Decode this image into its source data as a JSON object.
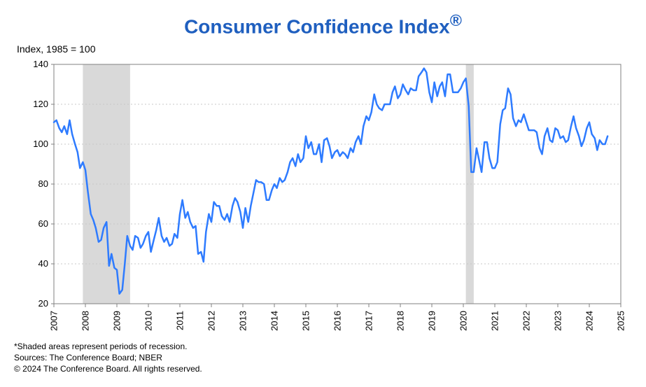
{
  "title": "Consumer Confidence Index",
  "title_sup": "®",
  "title_color": "#1f5fbf",
  "subtitle": "Index, 1985 = 100",
  "footnote1": "*Shaded areas represent periods of recession.",
  "footnote2": "Sources: The Conference Board;  NBER",
  "footnote3": "© 2024 The Conference Board. All rights reserved.",
  "chart": {
    "type": "line",
    "background_color": "#ffffff",
    "border_color": "#808080",
    "grid_color": "#c8c8c8",
    "line_color": "#2e7bff",
    "line_width": 2.5,
    "recession_fill": "#d9d9d9",
    "y": {
      "min": 20,
      "max": 140,
      "ticks": [
        20,
        40,
        60,
        80,
        100,
        120,
        140
      ],
      "tick_fontsize": 13
    },
    "x": {
      "min": 2007,
      "max": 2025,
      "ticks": [
        2007,
        2008,
        2009,
        2010,
        2011,
        2012,
        2013,
        2014,
        2015,
        2016,
        2017,
        2018,
        2019,
        2020,
        2021,
        2022,
        2023,
        2024,
        2025
      ],
      "tick_fontsize": 13,
      "rotate": -90
    },
    "recessions": [
      {
        "start": 2007.92,
        "end": 2009.42
      },
      {
        "start": 2020.08,
        "end": 2020.33
      }
    ],
    "series": [
      {
        "x": 2007.0,
        "y": 111
      },
      {
        "x": 2007.08,
        "y": 112
      },
      {
        "x": 2007.17,
        "y": 108
      },
      {
        "x": 2007.25,
        "y": 106
      },
      {
        "x": 2007.33,
        "y": 109
      },
      {
        "x": 2007.42,
        "y": 105
      },
      {
        "x": 2007.5,
        "y": 112
      },
      {
        "x": 2007.58,
        "y": 105
      },
      {
        "x": 2007.67,
        "y": 100
      },
      {
        "x": 2007.75,
        "y": 96
      },
      {
        "x": 2007.83,
        "y": 88
      },
      {
        "x": 2007.92,
        "y": 91
      },
      {
        "x": 2008.0,
        "y": 87
      },
      {
        "x": 2008.08,
        "y": 76
      },
      {
        "x": 2008.17,
        "y": 65
      },
      {
        "x": 2008.25,
        "y": 62
      },
      {
        "x": 2008.33,
        "y": 58
      },
      {
        "x": 2008.42,
        "y": 51
      },
      {
        "x": 2008.5,
        "y": 52
      },
      {
        "x": 2008.58,
        "y": 58
      },
      {
        "x": 2008.67,
        "y": 61
      },
      {
        "x": 2008.75,
        "y": 39
      },
      {
        "x": 2008.83,
        "y": 45
      },
      {
        "x": 2008.92,
        "y": 38
      },
      {
        "x": 2009.0,
        "y": 37
      },
      {
        "x": 2009.08,
        "y": 25
      },
      {
        "x": 2009.17,
        "y": 27
      },
      {
        "x": 2009.25,
        "y": 40
      },
      {
        "x": 2009.33,
        "y": 54
      },
      {
        "x": 2009.42,
        "y": 49
      },
      {
        "x": 2009.5,
        "y": 47
      },
      {
        "x": 2009.58,
        "y": 54
      },
      {
        "x": 2009.67,
        "y": 53
      },
      {
        "x": 2009.75,
        "y": 48
      },
      {
        "x": 2009.83,
        "y": 50
      },
      {
        "x": 2009.92,
        "y": 54
      },
      {
        "x": 2010.0,
        "y": 56
      },
      {
        "x": 2010.08,
        "y": 46
      },
      {
        "x": 2010.17,
        "y": 52
      },
      {
        "x": 2010.25,
        "y": 57
      },
      {
        "x": 2010.33,
        "y": 63
      },
      {
        "x": 2010.42,
        "y": 54
      },
      {
        "x": 2010.5,
        "y": 51
      },
      {
        "x": 2010.58,
        "y": 53
      },
      {
        "x": 2010.67,
        "y": 49
      },
      {
        "x": 2010.75,
        "y": 50
      },
      {
        "x": 2010.83,
        "y": 55
      },
      {
        "x": 2010.92,
        "y": 53
      },
      {
        "x": 2011.0,
        "y": 65
      },
      {
        "x": 2011.08,
        "y": 72
      },
      {
        "x": 2011.17,
        "y": 63
      },
      {
        "x": 2011.25,
        "y": 66
      },
      {
        "x": 2011.33,
        "y": 61
      },
      {
        "x": 2011.42,
        "y": 58
      },
      {
        "x": 2011.5,
        "y": 59
      },
      {
        "x": 2011.58,
        "y": 45
      },
      {
        "x": 2011.67,
        "y": 46
      },
      {
        "x": 2011.75,
        "y": 41
      },
      {
        "x": 2011.83,
        "y": 56
      },
      {
        "x": 2011.92,
        "y": 65
      },
      {
        "x": 2012.0,
        "y": 61
      },
      {
        "x": 2012.08,
        "y": 71
      },
      {
        "x": 2012.17,
        "y": 69
      },
      {
        "x": 2012.25,
        "y": 69
      },
      {
        "x": 2012.33,
        "y": 64
      },
      {
        "x": 2012.42,
        "y": 62
      },
      {
        "x": 2012.5,
        "y": 65
      },
      {
        "x": 2012.58,
        "y": 61
      },
      {
        "x": 2012.67,
        "y": 69
      },
      {
        "x": 2012.75,
        "y": 73
      },
      {
        "x": 2012.83,
        "y": 71
      },
      {
        "x": 2012.92,
        "y": 66
      },
      {
        "x": 2013.0,
        "y": 58
      },
      {
        "x": 2013.08,
        "y": 68
      },
      {
        "x": 2013.17,
        "y": 61
      },
      {
        "x": 2013.25,
        "y": 69
      },
      {
        "x": 2013.33,
        "y": 75
      },
      {
        "x": 2013.42,
        "y": 82
      },
      {
        "x": 2013.5,
        "y": 81
      },
      {
        "x": 2013.58,
        "y": 81
      },
      {
        "x": 2013.67,
        "y": 80
      },
      {
        "x": 2013.75,
        "y": 72
      },
      {
        "x": 2013.83,
        "y": 72
      },
      {
        "x": 2013.92,
        "y": 77
      },
      {
        "x": 2014.0,
        "y": 80
      },
      {
        "x": 2014.08,
        "y": 78
      },
      {
        "x": 2014.17,
        "y": 83
      },
      {
        "x": 2014.25,
        "y": 81
      },
      {
        "x": 2014.33,
        "y": 82
      },
      {
        "x": 2014.42,
        "y": 86
      },
      {
        "x": 2014.5,
        "y": 91
      },
      {
        "x": 2014.58,
        "y": 93
      },
      {
        "x": 2014.67,
        "y": 89
      },
      {
        "x": 2014.75,
        "y": 95
      },
      {
        "x": 2014.83,
        "y": 91
      },
      {
        "x": 2014.92,
        "y": 93
      },
      {
        "x": 2015.0,
        "y": 104
      },
      {
        "x": 2015.08,
        "y": 98
      },
      {
        "x": 2015.17,
        "y": 101
      },
      {
        "x": 2015.25,
        "y": 95
      },
      {
        "x": 2015.33,
        "y": 95
      },
      {
        "x": 2015.42,
        "y": 100
      },
      {
        "x": 2015.5,
        "y": 91
      },
      {
        "x": 2015.58,
        "y": 102
      },
      {
        "x": 2015.67,
        "y": 103
      },
      {
        "x": 2015.75,
        "y": 99
      },
      {
        "x": 2015.83,
        "y": 93
      },
      {
        "x": 2015.92,
        "y": 96
      },
      {
        "x": 2016.0,
        "y": 97
      },
      {
        "x": 2016.08,
        "y": 94
      },
      {
        "x": 2016.17,
        "y": 96
      },
      {
        "x": 2016.25,
        "y": 95
      },
      {
        "x": 2016.33,
        "y": 93
      },
      {
        "x": 2016.42,
        "y": 98
      },
      {
        "x": 2016.5,
        "y": 96
      },
      {
        "x": 2016.58,
        "y": 101
      },
      {
        "x": 2016.67,
        "y": 104
      },
      {
        "x": 2016.75,
        "y": 100
      },
      {
        "x": 2016.83,
        "y": 109
      },
      {
        "x": 2016.92,
        "y": 114
      },
      {
        "x": 2017.0,
        "y": 112
      },
      {
        "x": 2017.08,
        "y": 116
      },
      {
        "x": 2017.17,
        "y": 125
      },
      {
        "x": 2017.25,
        "y": 120
      },
      {
        "x": 2017.33,
        "y": 118
      },
      {
        "x": 2017.42,
        "y": 117
      },
      {
        "x": 2017.5,
        "y": 120
      },
      {
        "x": 2017.58,
        "y": 120
      },
      {
        "x": 2017.67,
        "y": 120
      },
      {
        "x": 2017.75,
        "y": 126
      },
      {
        "x": 2017.83,
        "y": 129
      },
      {
        "x": 2017.92,
        "y": 123
      },
      {
        "x": 2018.0,
        "y": 125
      },
      {
        "x": 2018.08,
        "y": 130
      },
      {
        "x": 2018.17,
        "y": 127
      },
      {
        "x": 2018.25,
        "y": 125
      },
      {
        "x": 2018.33,
        "y": 128
      },
      {
        "x": 2018.42,
        "y": 127
      },
      {
        "x": 2018.5,
        "y": 127
      },
      {
        "x": 2018.58,
        "y": 134
      },
      {
        "x": 2018.67,
        "y": 136
      },
      {
        "x": 2018.75,
        "y": 138
      },
      {
        "x": 2018.83,
        "y": 136
      },
      {
        "x": 2018.92,
        "y": 126
      },
      {
        "x": 2019.0,
        "y": 121
      },
      {
        "x": 2019.08,
        "y": 131
      },
      {
        "x": 2019.17,
        "y": 124
      },
      {
        "x": 2019.25,
        "y": 129
      },
      {
        "x": 2019.33,
        "y": 131
      },
      {
        "x": 2019.42,
        "y": 124
      },
      {
        "x": 2019.5,
        "y": 135
      },
      {
        "x": 2019.58,
        "y": 135
      },
      {
        "x": 2019.67,
        "y": 126
      },
      {
        "x": 2019.75,
        "y": 126
      },
      {
        "x": 2019.83,
        "y": 126
      },
      {
        "x": 2019.92,
        "y": 128
      },
      {
        "x": 2020.0,
        "y": 131
      },
      {
        "x": 2020.08,
        "y": 133
      },
      {
        "x": 2020.17,
        "y": 119
      },
      {
        "x": 2020.25,
        "y": 86
      },
      {
        "x": 2020.33,
        "y": 86
      },
      {
        "x": 2020.42,
        "y": 98
      },
      {
        "x": 2020.5,
        "y": 92
      },
      {
        "x": 2020.58,
        "y": 86
      },
      {
        "x": 2020.67,
        "y": 101
      },
      {
        "x": 2020.75,
        "y": 101
      },
      {
        "x": 2020.83,
        "y": 93
      },
      {
        "x": 2020.92,
        "y": 88
      },
      {
        "x": 2021.0,
        "y": 88
      },
      {
        "x": 2021.08,
        "y": 91
      },
      {
        "x": 2021.17,
        "y": 110
      },
      {
        "x": 2021.25,
        "y": 117
      },
      {
        "x": 2021.33,
        "y": 118
      },
      {
        "x": 2021.42,
        "y": 128
      },
      {
        "x": 2021.5,
        "y": 125
      },
      {
        "x": 2021.58,
        "y": 113
      },
      {
        "x": 2021.67,
        "y": 109
      },
      {
        "x": 2021.75,
        "y": 112
      },
      {
        "x": 2021.83,
        "y": 111
      },
      {
        "x": 2021.92,
        "y": 115
      },
      {
        "x": 2022.0,
        "y": 111
      },
      {
        "x": 2022.08,
        "y": 107
      },
      {
        "x": 2022.17,
        "y": 107
      },
      {
        "x": 2022.25,
        "y": 107
      },
      {
        "x": 2022.33,
        "y": 106
      },
      {
        "x": 2022.42,
        "y": 98
      },
      {
        "x": 2022.5,
        "y": 95
      },
      {
        "x": 2022.58,
        "y": 104
      },
      {
        "x": 2022.67,
        "y": 108
      },
      {
        "x": 2022.75,
        "y": 102
      },
      {
        "x": 2022.83,
        "y": 101
      },
      {
        "x": 2022.92,
        "y": 108
      },
      {
        "x": 2023.0,
        "y": 107
      },
      {
        "x": 2023.08,
        "y": 103
      },
      {
        "x": 2023.17,
        "y": 104
      },
      {
        "x": 2023.25,
        "y": 101
      },
      {
        "x": 2023.33,
        "y": 102
      },
      {
        "x": 2023.42,
        "y": 109
      },
      {
        "x": 2023.5,
        "y": 114
      },
      {
        "x": 2023.58,
        "y": 108
      },
      {
        "x": 2023.67,
        "y": 104
      },
      {
        "x": 2023.75,
        "y": 99
      },
      {
        "x": 2023.83,
        "y": 102
      },
      {
        "x": 2023.92,
        "y": 108
      },
      {
        "x": 2024.0,
        "y": 111
      },
      {
        "x": 2024.08,
        "y": 105
      },
      {
        "x": 2024.17,
        "y": 103
      },
      {
        "x": 2024.25,
        "y": 97
      },
      {
        "x": 2024.33,
        "y": 102
      },
      {
        "x": 2024.42,
        "y": 100
      },
      {
        "x": 2024.5,
        "y": 100
      },
      {
        "x": 2024.58,
        "y": 104
      }
    ]
  }
}
